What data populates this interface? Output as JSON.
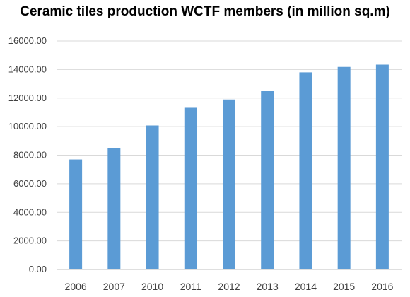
{
  "chart_data": {
    "type": "bar",
    "title": "Ceramic tiles production WCTF members (in million sq.m)",
    "categories": [
      "2006",
      "2007",
      "2010",
      "2011",
      "2012",
      "2013",
      "2014",
      "2015",
      "2016"
    ],
    "values": [
      7700,
      8480,
      10080,
      11320,
      11900,
      12520,
      13800,
      14180,
      14340
    ],
    "xlabel": "",
    "ylabel": "",
    "ylim": [
      0,
      16000
    ],
    "yticks": [
      "0.00",
      "2000.00",
      "4000.00",
      "6000.00",
      "8000.00",
      "10000.00",
      "12000.00",
      "14000.00",
      "16000.00"
    ],
    "grid": true,
    "legend": "none",
    "bar_color": "#5B9BD5",
    "grid_color": "#D9D9D9"
  }
}
